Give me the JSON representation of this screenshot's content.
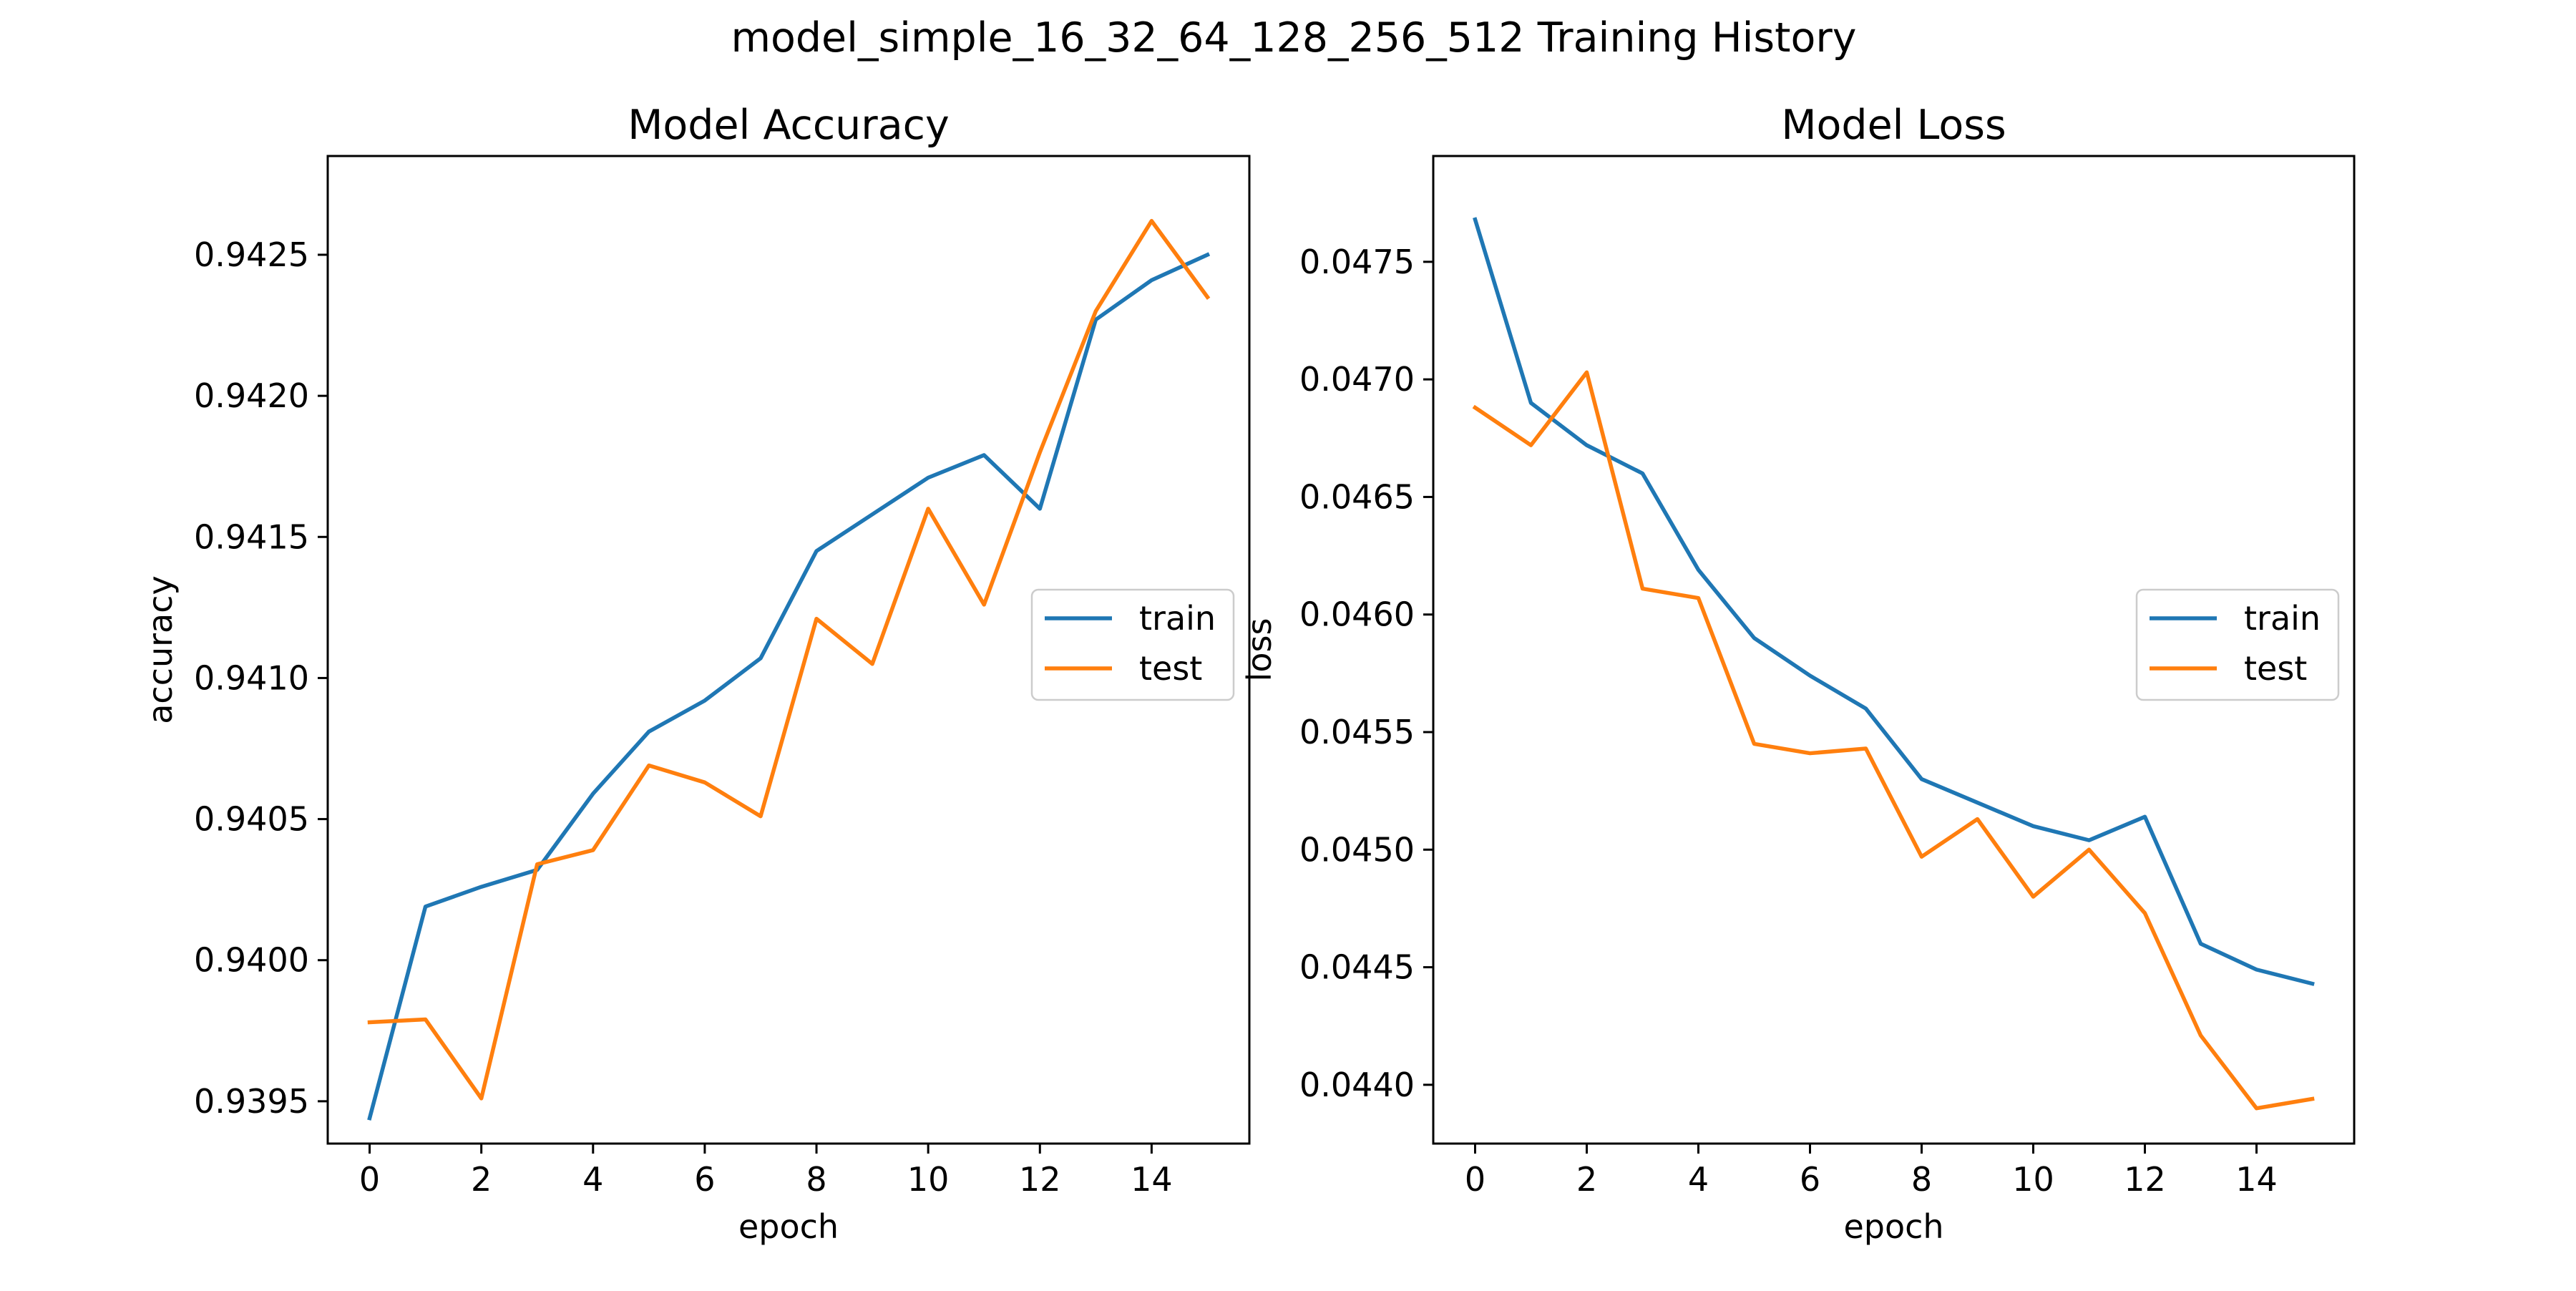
{
  "figure": {
    "title": "model_simple_16_32_64_128_256_512 Training History"
  },
  "colors": {
    "train": "#1f77b4",
    "test": "#ff7f0e",
    "axes": "#000000",
    "background": "#ffffff"
  },
  "chart_data": [
    {
      "type": "line",
      "title": "Model Accuracy",
      "xlabel": "epoch",
      "ylabel": "accuracy",
      "xlim": [
        -0.75,
        15.75
      ],
      "ylim": [
        0.93935,
        0.94285
      ],
      "xticks": [
        0,
        2,
        4,
        6,
        8,
        10,
        12,
        14
      ],
      "yticks": [
        0.9395,
        0.94,
        0.9405,
        0.941,
        0.9415,
        0.942,
        0.9425
      ],
      "ytick_labels": [
        "0.9395",
        "0.9400",
        "0.9405",
        "0.9410",
        "0.9415",
        "0.9420",
        "0.9425"
      ],
      "grid": false,
      "legend_position": "center-right",
      "x": [
        0,
        1,
        2,
        3,
        4,
        5,
        6,
        7,
        8,
        9,
        10,
        11,
        12,
        13,
        14,
        15
      ],
      "series": [
        {
          "name": "train",
          "color": "#1f77b4",
          "values": [
            0.93944,
            0.94019,
            0.94026,
            0.94032,
            0.94059,
            0.94081,
            0.94092,
            0.94107,
            0.94145,
            0.94158,
            0.94171,
            0.94179,
            0.9416,
            0.94227,
            0.94241,
            0.9425
          ]
        },
        {
          "name": "test",
          "color": "#ff7f0e",
          "values": [
            0.93978,
            0.93979,
            0.93951,
            0.94034,
            0.94039,
            0.94069,
            0.94063,
            0.94051,
            0.94121,
            0.94105,
            0.9416,
            0.94126,
            0.9418,
            0.9423,
            0.94262,
            0.94235
          ]
        }
      ]
    },
    {
      "type": "line",
      "title": "Model Loss",
      "xlabel": "epoch",
      "ylabel": "loss",
      "xlim": [
        -0.75,
        15.75
      ],
      "ylim": [
        0.04375,
        0.04795
      ],
      "xticks": [
        0,
        2,
        4,
        6,
        8,
        10,
        12,
        14
      ],
      "yticks": [
        0.044,
        0.0445,
        0.045,
        0.0455,
        0.046,
        0.0465,
        0.047,
        0.0475
      ],
      "ytick_labels": [
        "0.0440",
        "0.0445",
        "0.0450",
        "0.0455",
        "0.0460",
        "0.0465",
        "0.0470",
        "0.0475"
      ],
      "grid": false,
      "legend_position": "center-right",
      "x": [
        0,
        1,
        2,
        3,
        4,
        5,
        6,
        7,
        8,
        9,
        10,
        11,
        12,
        13,
        14,
        15
      ],
      "series": [
        {
          "name": "train",
          "color": "#1f77b4",
          "values": [
            0.04768,
            0.0469,
            0.04672,
            0.0466,
            0.04619,
            0.0459,
            0.04574,
            0.0456,
            0.0453,
            0.0452,
            0.0451,
            0.04504,
            0.04514,
            0.0446,
            0.04449,
            0.04443
          ]
        },
        {
          "name": "test",
          "color": "#ff7f0e",
          "values": [
            0.04688,
            0.04672,
            0.04703,
            0.04611,
            0.04607,
            0.04545,
            0.04541,
            0.04543,
            0.04497,
            0.04513,
            0.0448,
            0.045,
            0.04473,
            0.04421,
            0.0439,
            0.04394
          ]
        }
      ]
    }
  ]
}
